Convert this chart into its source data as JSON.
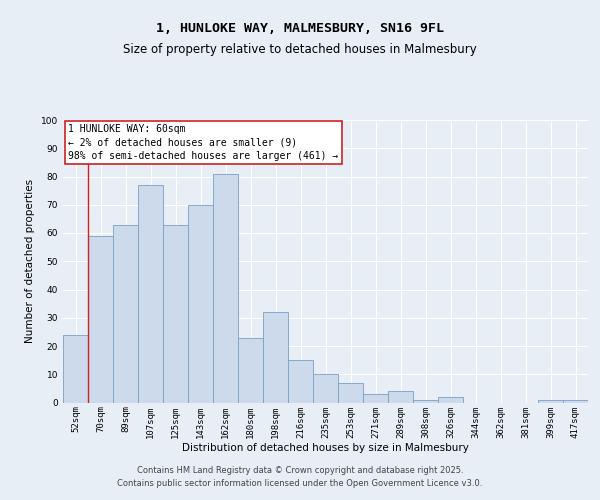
{
  "title_line1": "1, HUNLOKE WAY, MALMESBURY, SN16 9FL",
  "title_line2": "Size of property relative to detached houses in Malmesbury",
  "xlabel": "Distribution of detached houses by size in Malmesbury",
  "ylabel": "Number of detached properties",
  "categories": [
    "52sqm",
    "70sqm",
    "89sqm",
    "107sqm",
    "125sqm",
    "143sqm",
    "162sqm",
    "180sqm",
    "198sqm",
    "216sqm",
    "235sqm",
    "253sqm",
    "271sqm",
    "289sqm",
    "308sqm",
    "326sqm",
    "344sqm",
    "362sqm",
    "381sqm",
    "399sqm",
    "417sqm"
  ],
  "values": [
    24,
    59,
    63,
    77,
    63,
    70,
    81,
    23,
    32,
    15,
    10,
    7,
    3,
    4,
    1,
    2,
    0,
    0,
    0,
    1,
    1
  ],
  "bar_color": "#cddaeb",
  "bar_edge_color": "#7aa0c4",
  "annotation_text_line1": "1 HUNLOKE WAY: 60sqm",
  "annotation_text_line2": "← 2% of detached houses are smaller (9)",
  "annotation_text_line3": "98% of semi-detached houses are larger (461) →",
  "annotation_box_facecolor": "#ffffff",
  "annotation_box_edgecolor": "#cc2222",
  "red_line_x": 1,
  "ylim": [
    0,
    100
  ],
  "yticks": [
    0,
    10,
    20,
    30,
    40,
    50,
    60,
    70,
    80,
    90,
    100
  ],
  "background_color": "#e8eef5",
  "grid_color": "#ffffff",
  "footer_text": "Contains HM Land Registry data © Crown copyright and database right 2025.\nContains public sector information licensed under the Open Government Licence v3.0.",
  "title_fontsize": 9.5,
  "subtitle_fontsize": 8.5,
  "ylabel_fontsize": 7.5,
  "xlabel_fontsize": 7.5,
  "tick_fontsize": 6.5,
  "annotation_fontsize": 7,
  "footer_fontsize": 6
}
